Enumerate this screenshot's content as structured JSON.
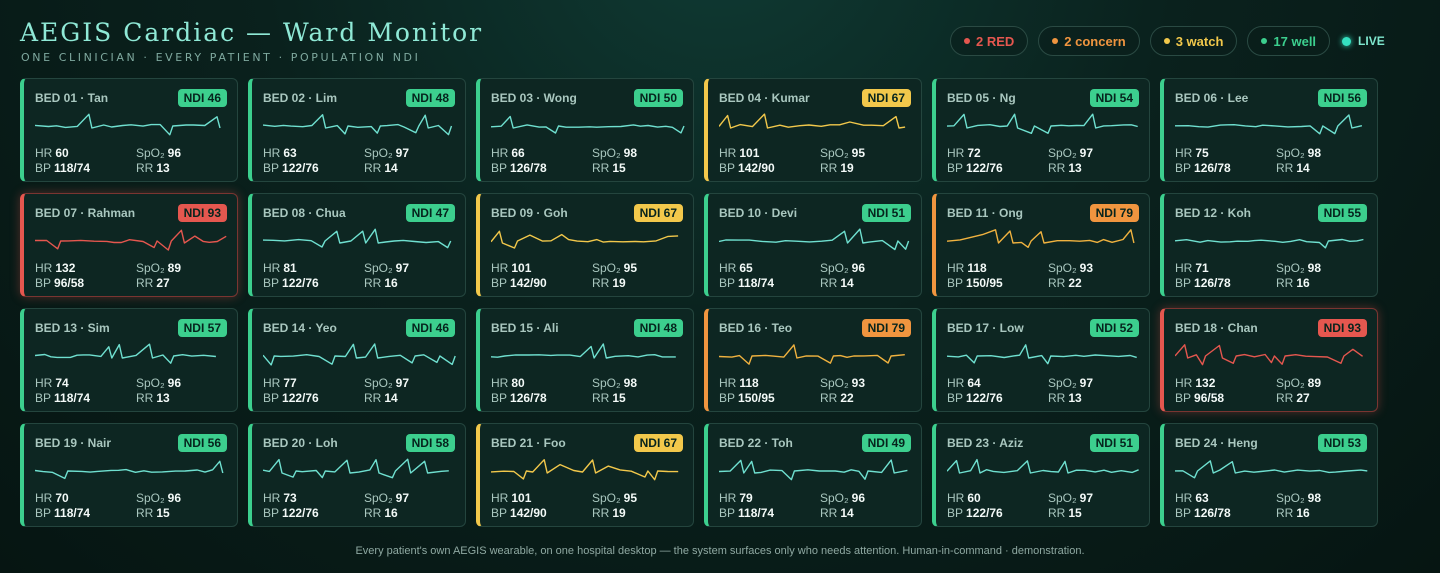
{
  "header": {
    "title": "AEGIS Cardiac — Ward Monitor",
    "subtitle": "ONE CLINICIAN · EVERY PATIENT · POPULATION NDI"
  },
  "summary": [
    {
      "key": "red",
      "label": "2 RED",
      "color": "#e5574f"
    },
    {
      "key": "concern",
      "label": "2 concern",
      "color": "#f0953f"
    },
    {
      "key": "watch",
      "label": "3 watch",
      "color": "#f2c84b"
    },
    {
      "key": "well",
      "label": "17 well",
      "color": "#3ccf8e"
    }
  ],
  "live_label": "LIVE",
  "status_colors": {
    "well": "#3ccf8e",
    "watch": "#f2c84b",
    "concern": "#f0953f",
    "red": "#e5574f"
  },
  "wave_colors": {
    "well": "#6fe0d0",
    "watch": "#f2c84b",
    "concern": "#f0b23f",
    "red": "#e5574f"
  },
  "vital_labels": {
    "hr": "HR",
    "spo2": "SpO₂",
    "bp": "BP",
    "rr": "RR"
  },
  "beds": [
    {
      "label": "BED 01 · Tan",
      "ndi": "NDI 46",
      "status": "well",
      "hr": "60",
      "spo2": "96",
      "bp": "118/74",
      "rr": "13"
    },
    {
      "label": "BED 02 · Lim",
      "ndi": "NDI 48",
      "status": "well",
      "hr": "63",
      "spo2": "97",
      "bp": "122/76",
      "rr": "14"
    },
    {
      "label": "BED 03 · Wong",
      "ndi": "NDI 50",
      "status": "well",
      "hr": "66",
      "spo2": "98",
      "bp": "126/78",
      "rr": "15"
    },
    {
      "label": "BED 04 · Kumar",
      "ndi": "NDI 67",
      "status": "watch",
      "hr": "101",
      "spo2": "95",
      "bp": "142/90",
      "rr": "19"
    },
    {
      "label": "BED 05 · Ng",
      "ndi": "NDI 54",
      "status": "well",
      "hr": "72",
      "spo2": "97",
      "bp": "122/76",
      "rr": "13"
    },
    {
      "label": "BED 06 · Lee",
      "ndi": "NDI 56",
      "status": "well",
      "hr": "75",
      "spo2": "98",
      "bp": "126/78",
      "rr": "14"
    },
    {
      "label": "BED 07 · Rahman",
      "ndi": "NDI 93",
      "status": "red",
      "hr": "132",
      "spo2": "89",
      "bp": "96/58",
      "rr": "27"
    },
    {
      "label": "BED 08 · Chua",
      "ndi": "NDI 47",
      "status": "well",
      "hr": "81",
      "spo2": "97",
      "bp": "122/76",
      "rr": "16"
    },
    {
      "label": "BED 09 · Goh",
      "ndi": "NDI 67",
      "status": "watch",
      "hr": "101",
      "spo2": "95",
      "bp": "142/90",
      "rr": "19"
    },
    {
      "label": "BED 10 · Devi",
      "ndi": "NDI 51",
      "status": "well",
      "hr": "65",
      "spo2": "96",
      "bp": "118/74",
      "rr": "14"
    },
    {
      "label": "BED 11 · Ong",
      "ndi": "NDI 79",
      "status": "concern",
      "hr": "118",
      "spo2": "93",
      "bp": "150/95",
      "rr": "22"
    },
    {
      "label": "BED 12 · Koh",
      "ndi": "NDI 55",
      "status": "well",
      "hr": "71",
      "spo2": "98",
      "bp": "126/78",
      "rr": "16"
    },
    {
      "label": "BED 13 · Sim",
      "ndi": "NDI 57",
      "status": "well",
      "hr": "74",
      "spo2": "96",
      "bp": "118/74",
      "rr": "13"
    },
    {
      "label": "BED 14 · Yeo",
      "ndi": "NDI 46",
      "status": "well",
      "hr": "77",
      "spo2": "97",
      "bp": "122/76",
      "rr": "14"
    },
    {
      "label": "BED 15 · Ali",
      "ndi": "NDI 48",
      "status": "well",
      "hr": "80",
      "spo2": "98",
      "bp": "126/78",
      "rr": "15"
    },
    {
      "label": "BED 16 · Teo",
      "ndi": "NDI 79",
      "status": "concern",
      "hr": "118",
      "spo2": "93",
      "bp": "150/95",
      "rr": "22"
    },
    {
      "label": "BED 17 · Low",
      "ndi": "NDI 52",
      "status": "well",
      "hr": "64",
      "spo2": "97",
      "bp": "122/76",
      "rr": "13"
    },
    {
      "label": "BED 18 · Chan",
      "ndi": "NDI 93",
      "status": "red",
      "hr": "132",
      "spo2": "89",
      "bp": "96/58",
      "rr": "27"
    },
    {
      "label": "BED 19 · Nair",
      "ndi": "NDI 56",
      "status": "well",
      "hr": "70",
      "spo2": "96",
      "bp": "118/74",
      "rr": "15"
    },
    {
      "label": "BED 20 · Loh",
      "ndi": "NDI 58",
      "status": "well",
      "hr": "73",
      "spo2": "97",
      "bp": "122/76",
      "rr": "16"
    },
    {
      "label": "BED 21 · Foo",
      "ndi": "NDI 67",
      "status": "watch",
      "hr": "101",
      "spo2": "95",
      "bp": "142/90",
      "rr": "19"
    },
    {
      "label": "BED 22 · Toh",
      "ndi": "NDI 49",
      "status": "well",
      "hr": "79",
      "spo2": "96",
      "bp": "118/74",
      "rr": "14"
    },
    {
      "label": "BED 23 · Aziz",
      "ndi": "NDI 51",
      "status": "well",
      "hr": "60",
      "spo2": "97",
      "bp": "122/76",
      "rr": "15"
    },
    {
      "label": "BED 24 · Heng",
      "ndi": "NDI 53",
      "status": "well",
      "hr": "63",
      "spo2": "98",
      "bp": "126/78",
      "rr": "16"
    }
  ],
  "footer": "Every patient's own AEGIS wearable, on one hospital desktop — the system surfaces only who needs attention. Human-in-command · demonstration."
}
